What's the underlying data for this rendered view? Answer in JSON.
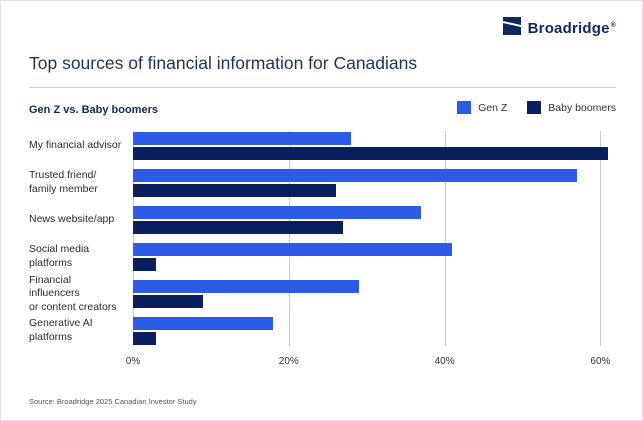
{
  "logo": {
    "text": "Broadridge",
    "reg": "®",
    "color": "#0E2A5C"
  },
  "header": {
    "title": "Top sources of financial information for Canadians"
  },
  "chart_data": {
    "type": "bar",
    "orientation": "horizontal",
    "title": "Top sources of financial information for Canadians",
    "subtitle": "Gen Z vs. Baby boomers",
    "categories": [
      "My financial advisor",
      "Trusted friend/\nfamily member",
      "News website/app",
      "Social media\nplatforms",
      "Financial influencers\nor content creators",
      "Generative AI\nplatforms"
    ],
    "series": [
      {
        "name": "Gen Z",
        "color": "#2C5BE8",
        "values": [
          28,
          57,
          37,
          41,
          29,
          18
        ]
      },
      {
        "name": "Baby boomers",
        "color": "#0A1F5E",
        "values": [
          61,
          26,
          27,
          3,
          9,
          3
        ]
      }
    ],
    "x_axis": {
      "ticks": [
        0,
        20,
        40,
        60
      ],
      "tick_labels": [
        "0%",
        "20%",
        "40%",
        "60%"
      ],
      "max": 62,
      "unit": "%"
    },
    "grid": true,
    "legend_position": "top-right"
  },
  "source": "Source: Broadridge 2025 Canadian Investor Study"
}
